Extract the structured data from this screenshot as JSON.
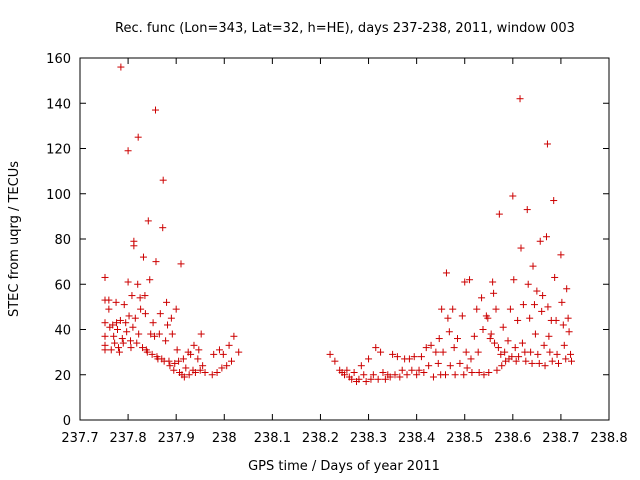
{
  "chart_data": {
    "type": "scatter",
    "title": "Rec. func (Lon=343, Lat=32, h=HE), days 237-238, 2011, window 003",
    "xlabel": "GPS time / Days of year 2011",
    "ylabel": "STEC from uqrg / TECUs",
    "xlim": [
      237.7,
      238.8
    ],
    "ylim": [
      0,
      160
    ],
    "xticks": [
      237.7,
      237.8,
      237.9,
      238,
      238.1,
      238.2,
      238.3,
      238.4,
      238.5,
      238.6,
      238.7,
      238.8
    ],
    "xtick_labels": [
      "237.7",
      "237.8",
      "237.9",
      "238",
      "238.1",
      "238.2",
      "238.3",
      "238.4",
      "238.5",
      "238.6",
      "238.7",
      "238.8"
    ],
    "yticks": [
      0,
      20,
      40,
      60,
      80,
      100,
      120,
      140,
      160
    ],
    "ytick_labels": [
      "0",
      "20",
      "40",
      "60",
      "80",
      "100",
      "120",
      "140",
      "160"
    ],
    "grid": false,
    "marker": "+",
    "color": "#cc0000",
    "series": [
      {
        "points": [
          [
            237.752,
            63
          ],
          [
            237.752,
            53
          ],
          [
            237.752,
            43
          ],
          [
            237.752,
            37
          ],
          [
            237.752,
            33
          ],
          [
            237.752,
            31
          ],
          [
            237.76,
            53
          ],
          [
            237.76,
            49
          ],
          [
            237.762,
            41
          ],
          [
            237.765,
            31
          ],
          [
            237.768,
            42
          ],
          [
            237.77,
            37
          ],
          [
            237.772,
            34
          ],
          [
            237.775,
            52
          ],
          [
            237.776,
            43
          ],
          [
            237.778,
            40
          ],
          [
            237.78,
            32
          ],
          [
            237.782,
            30
          ],
          [
            237.784,
            44
          ],
          [
            237.785,
            156
          ],
          [
            237.788,
            36
          ],
          [
            237.79,
            34
          ],
          [
            237.792,
            51
          ],
          [
            237.795,
            43
          ],
          [
            237.797,
            39
          ],
          [
            237.8,
            119
          ],
          [
            237.8,
            61
          ],
          [
            237.802,
            46
          ],
          [
            237.805,
            35
          ],
          [
            237.806,
            32
          ],
          [
            237.808,
            55
          ],
          [
            237.81,
            41
          ],
          [
            237.812,
            79
          ],
          [
            237.812,
            77
          ],
          [
            237.815,
            45
          ],
          [
            237.818,
            34
          ],
          [
            237.82,
            60
          ],
          [
            237.821,
            125
          ],
          [
            237.822,
            38
          ],
          [
            237.825,
            54
          ],
          [
            237.826,
            49
          ],
          [
            237.83,
            32
          ],
          [
            237.832,
            72
          ],
          [
            237.835,
            55
          ],
          [
            237.836,
            47
          ],
          [
            237.838,
            31
          ],
          [
            237.84,
            30
          ],
          [
            237.842,
            88
          ],
          [
            237.845,
            62
          ],
          [
            237.847,
            38
          ],
          [
            237.85,
            29
          ],
          [
            237.852,
            43
          ],
          [
            237.855,
            37
          ],
          [
            237.857,
            137
          ],
          [
            237.858,
            70
          ],
          [
            237.86,
            28
          ],
          [
            237.862,
            27
          ],
          [
            237.865,
            38
          ],
          [
            237.867,
            47
          ],
          [
            237.87,
            27
          ],
          [
            237.872,
            85
          ],
          [
            237.873,
            106
          ],
          [
            237.875,
            26
          ],
          [
            237.878,
            35
          ],
          [
            237.88,
            52
          ],
          [
            237.882,
            42
          ],
          [
            237.885,
            26
          ],
          [
            237.887,
            24
          ],
          [
            237.89,
            45
          ],
          [
            237.892,
            38
          ],
          [
            237.895,
            22
          ],
          [
            237.897,
            25
          ],
          [
            237.9,
            49
          ],
          [
            237.902,
            31
          ],
          [
            237.905,
            26
          ],
          [
            237.907,
            21
          ],
          [
            237.91,
            69
          ],
          [
            237.912,
            20
          ],
          [
            237.915,
            27
          ],
          [
            237.917,
            19
          ],
          [
            237.92,
            23
          ],
          [
            237.925,
            30
          ],
          [
            237.927,
            20
          ],
          [
            237.93,
            29
          ],
          [
            237.935,
            22
          ],
          [
            237.937,
            33
          ],
          [
            237.94,
            21
          ],
          [
            237.945,
            27
          ],
          [
            237.947,
            31
          ],
          [
            237.95,
            22
          ],
          [
            237.952,
            38
          ],
          [
            237.955,
            24
          ],
          [
            237.96,
            21
          ],
          [
            237.975,
            20
          ],
          [
            237.978,
            29
          ],
          [
            237.985,
            21
          ],
          [
            237.99,
            31
          ],
          [
            237.995,
            23
          ],
          [
            237.998,
            29
          ],
          [
            238.005,
            24
          ],
          [
            238.01,
            33
          ],
          [
            238.015,
            26
          ],
          [
            238.02,
            37
          ],
          [
            238.03,
            30
          ],
          [
            238.22,
            29
          ],
          [
            238.23,
            26
          ],
          [
            238.24,
            22
          ],
          [
            238.245,
            21
          ],
          [
            238.25,
            20
          ],
          [
            238.255,
            22
          ],
          [
            238.26,
            19
          ],
          [
            238.265,
            18
          ],
          [
            238.27,
            21
          ],
          [
            238.275,
            17
          ],
          [
            238.28,
            18
          ],
          [
            238.285,
            24
          ],
          [
            238.29,
            20
          ],
          [
            238.295,
            17
          ],
          [
            238.3,
            27
          ],
          [
            238.305,
            18
          ],
          [
            238.31,
            20
          ],
          [
            238.315,
            32
          ],
          [
            238.32,
            18
          ],
          [
            238.325,
            30
          ],
          [
            238.33,
            21
          ],
          [
            238.335,
            18
          ],
          [
            238.34,
            20
          ],
          [
            238.345,
            19
          ],
          [
            238.35,
            29
          ],
          [
            238.355,
            20
          ],
          [
            238.36,
            28
          ],
          [
            238.365,
            19
          ],
          [
            238.37,
            22
          ],
          [
            238.375,
            27
          ],
          [
            238.38,
            20
          ],
          [
            238.385,
            27
          ],
          [
            238.39,
            22
          ],
          [
            238.395,
            28
          ],
          [
            238.4,
            20
          ],
          [
            238.405,
            22
          ],
          [
            238.41,
            28
          ],
          [
            238.415,
            21
          ],
          [
            238.42,
            32
          ],
          [
            238.425,
            24
          ],
          [
            238.43,
            33
          ],
          [
            238.435,
            19
          ],
          [
            238.44,
            30
          ],
          [
            238.445,
            25
          ],
          [
            238.447,
            36
          ],
          [
            238.45,
            20
          ],
          [
            238.452,
            49
          ],
          [
            238.455,
            30
          ],
          [
            238.46,
            20
          ],
          [
            238.462,
            65
          ],
          [
            238.465,
            45
          ],
          [
            238.468,
            39
          ],
          [
            238.47,
            24
          ],
          [
            238.475,
            49
          ],
          [
            238.478,
            32
          ],
          [
            238.48,
            20
          ],
          [
            238.485,
            36
          ],
          [
            238.49,
            25
          ],
          [
            238.495,
            46
          ],
          [
            238.498,
            20
          ],
          [
            238.5,
            61
          ],
          [
            238.503,
            30
          ],
          [
            238.505,
            23
          ],
          [
            238.51,
            62
          ],
          [
            238.513,
            27
          ],
          [
            238.515,
            21
          ],
          [
            238.52,
            37
          ],
          [
            238.525,
            49
          ],
          [
            238.528,
            30
          ],
          [
            238.53,
            21
          ],
          [
            238.535,
            54
          ],
          [
            238.538,
            40
          ],
          [
            238.54,
            20
          ],
          [
            238.545,
            46
          ],
          [
            238.548,
            45
          ],
          [
            238.55,
            21
          ],
          [
            238.553,
            36
          ],
          [
            238.555,
            38
          ],
          [
            238.558,
            61
          ],
          [
            238.56,
            56
          ],
          [
            238.562,
            34
          ],
          [
            238.565,
            49
          ],
          [
            238.567,
            22
          ],
          [
            238.57,
            32
          ],
          [
            238.572,
            91
          ],
          [
            238.575,
            29
          ],
          [
            238.577,
            24
          ],
          [
            238.58,
            41
          ],
          [
            238.583,
            30
          ],
          [
            238.585,
            26
          ],
          [
            238.59,
            35
          ],
          [
            238.592,
            27
          ],
          [
            238.595,
            49
          ],
          [
            238.598,
            28
          ],
          [
            238.6,
            99
          ],
          [
            238.602,
            62
          ],
          [
            238.605,
            32
          ],
          [
            238.607,
            26
          ],
          [
            238.61,
            44
          ],
          [
            238.612,
            28
          ],
          [
            238.615,
            142
          ],
          [
            238.617,
            76
          ],
          [
            238.62,
            34
          ],
          [
            238.622,
            51
          ],
          [
            238.625,
            30
          ],
          [
            238.627,
            26
          ],
          [
            238.63,
            93
          ],
          [
            238.632,
            60
          ],
          [
            238.635,
            45
          ],
          [
            238.637,
            30
          ],
          [
            238.64,
            25
          ],
          [
            238.642,
            68
          ],
          [
            238.645,
            51
          ],
          [
            238.647,
            38
          ],
          [
            238.65,
            57
          ],
          [
            238.652,
            29
          ],
          [
            238.655,
            25
          ],
          [
            238.657,
            79
          ],
          [
            238.66,
            48
          ],
          [
            238.662,
            55
          ],
          [
            238.665,
            33
          ],
          [
            238.667,
            24
          ],
          [
            238.67,
            81
          ],
          [
            238.672,
            122
          ],
          [
            238.673,
            50
          ],
          [
            238.675,
            37
          ],
          [
            238.677,
            30
          ],
          [
            238.68,
            44
          ],
          [
            238.682,
            26
          ],
          [
            238.685,
            97
          ],
          [
            238.687,
            63
          ],
          [
            238.69,
            44
          ],
          [
            238.692,
            29
          ],
          [
            238.695,
            25
          ],
          [
            238.7,
            73
          ],
          [
            238.702,
            52
          ],
          [
            238.705,
            42
          ],
          [
            238.707,
            33
          ],
          [
            238.71,
            27
          ],
          [
            238.712,
            58
          ],
          [
            238.715,
            45
          ],
          [
            238.717,
            39
          ],
          [
            238.72,
            29
          ],
          [
            238.722,
            26
          ]
        ]
      }
    ]
  }
}
